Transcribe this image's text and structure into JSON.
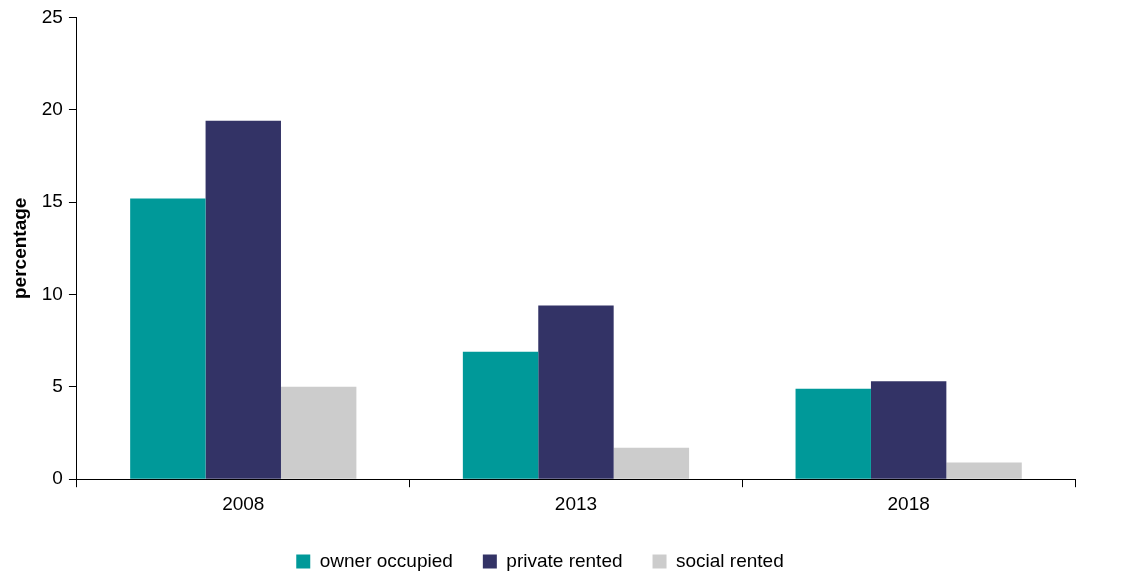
{
  "chart_data": {
    "type": "bar",
    "ylabel": "percentage",
    "categories": [
      "2008",
      "2013",
      "2018"
    ],
    "series": [
      {
        "name": "owner occupied",
        "color": "#009999",
        "values": [
          15.2,
          6.9,
          4.9
        ]
      },
      {
        "name": "private rented",
        "color": "#333366",
        "values": [
          19.4,
          9.4,
          5.3
        ]
      },
      {
        "name": "social rented",
        "color": "#cccccc",
        "values": [
          5.0,
          1.7,
          0.9
        ]
      }
    ],
    "ylim": [
      0,
      25
    ],
    "yticks": [
      0,
      5,
      10,
      15,
      20,
      25
    ],
    "grid": false,
    "legend": "bottom"
  }
}
